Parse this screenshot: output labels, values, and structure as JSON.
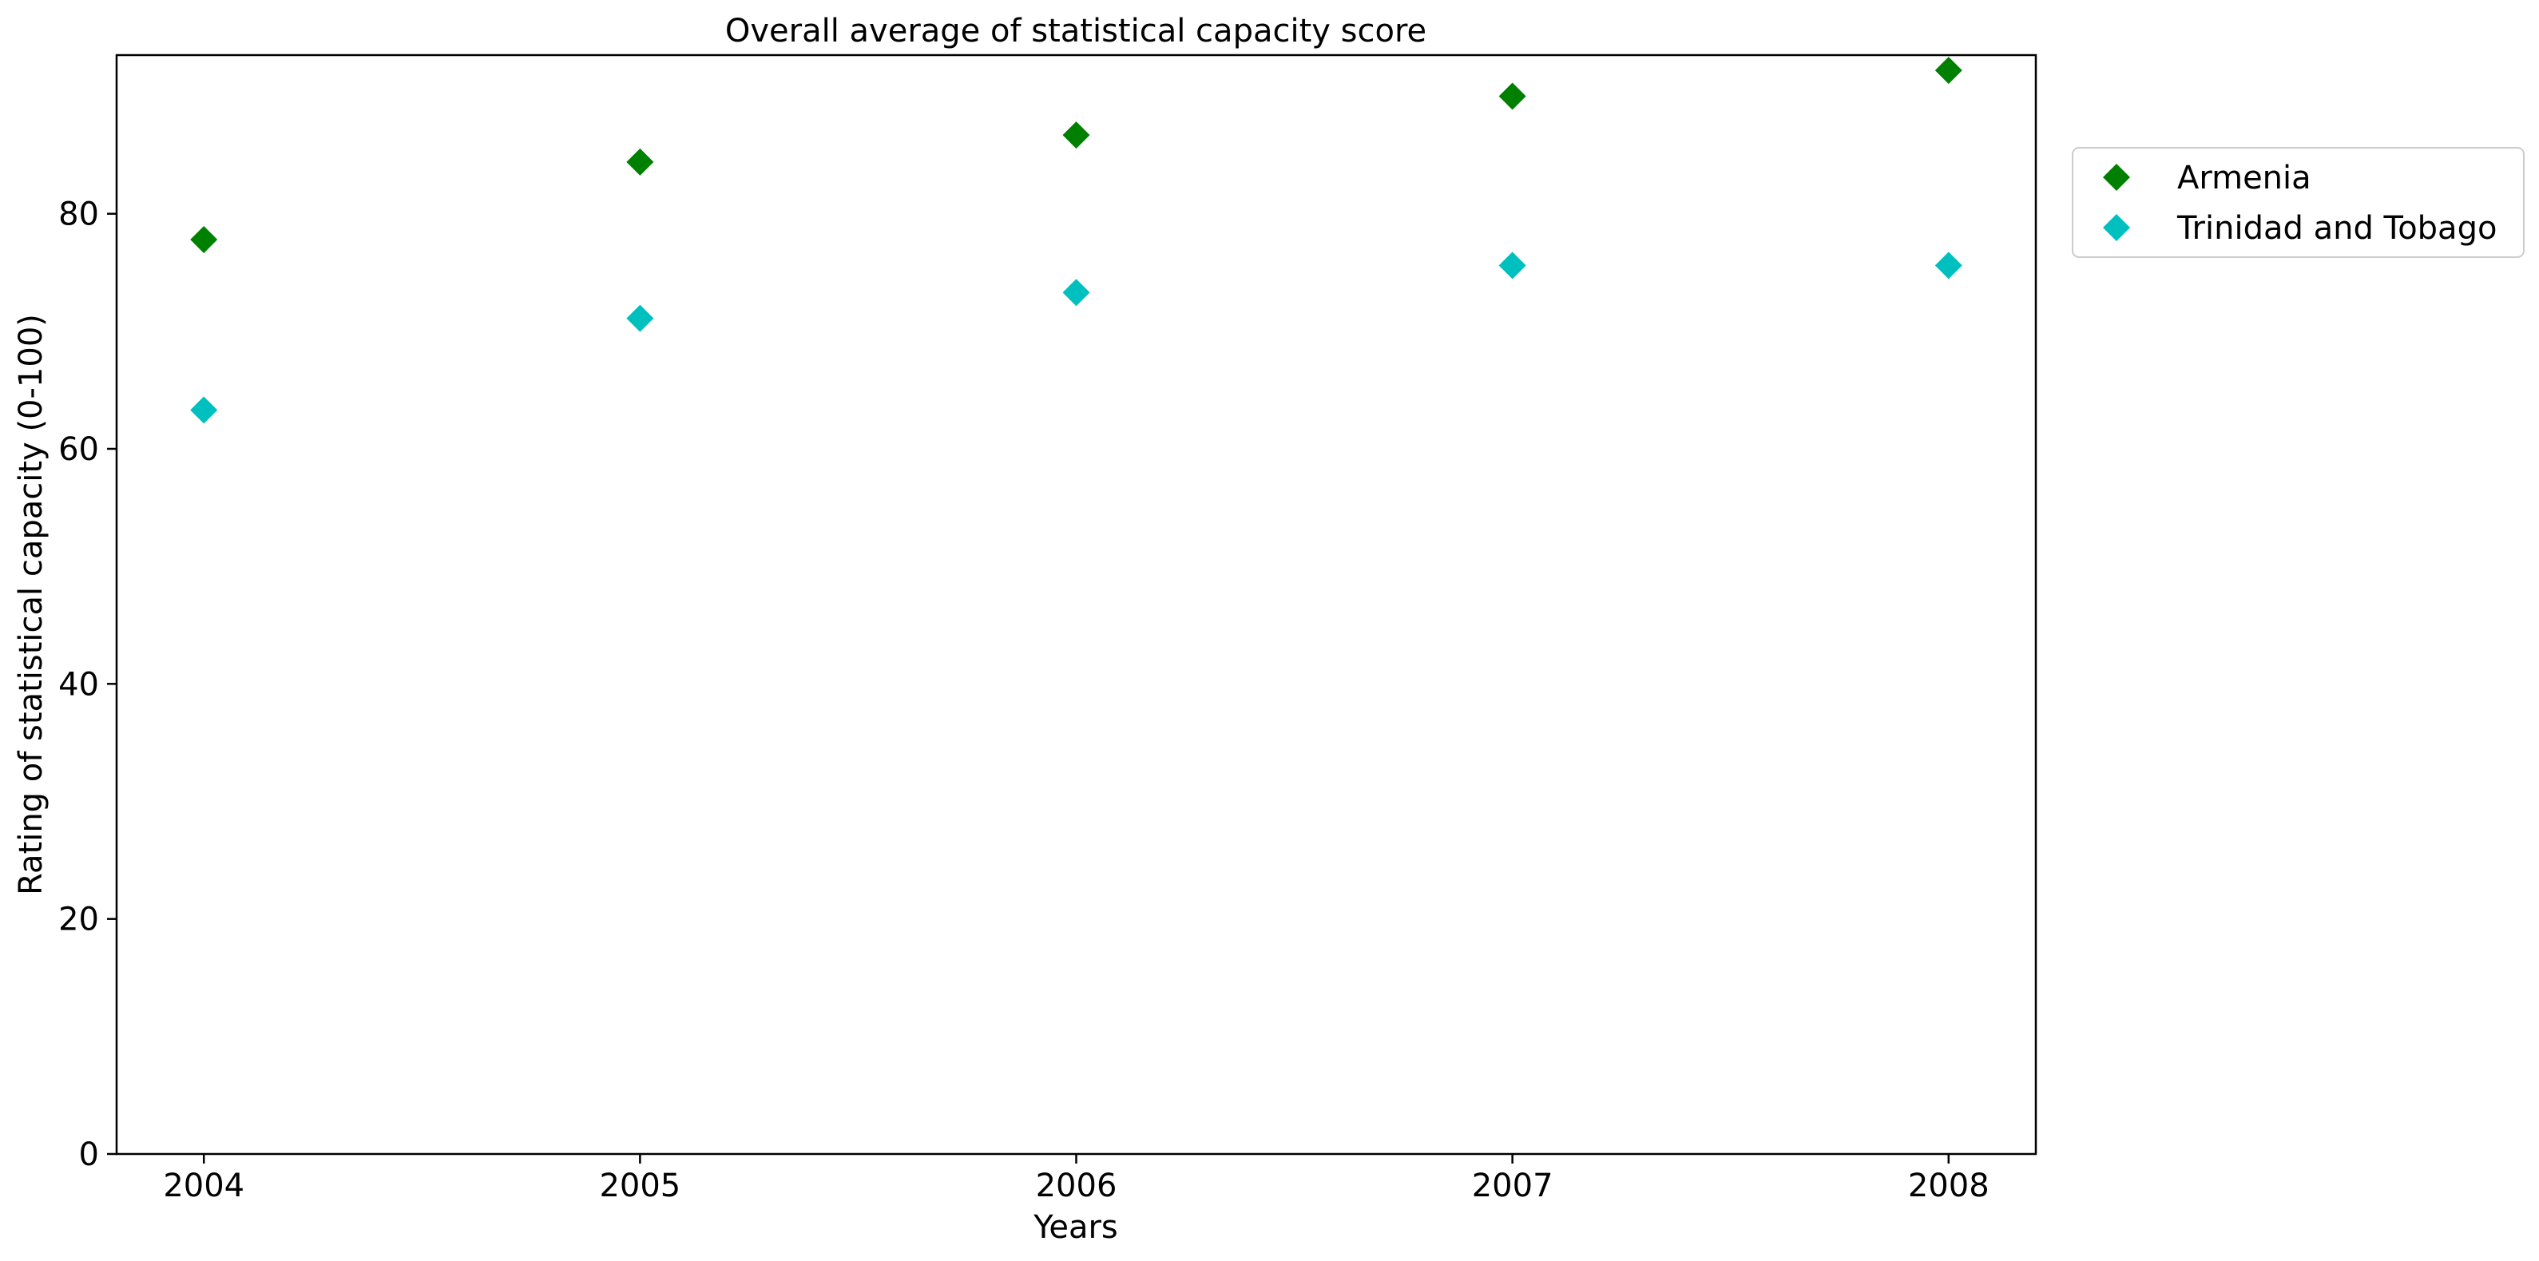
{
  "chart_data": {
    "type": "scatter",
    "title": "Overall average of statistical capacity score",
    "xlabel": "Years",
    "ylabel": "Rating of statistical capacity (0-100)",
    "x": [
      "2004",
      "2005",
      "2006",
      "2007",
      "2008"
    ],
    "xlim": [
      2003.8,
      2008.2
    ],
    "ylim": [
      0,
      93.5
    ],
    "yticks": [
      0,
      20,
      40,
      60,
      80
    ],
    "grid": false,
    "legend_position": "outside-right-top",
    "marker": "diamond",
    "series": [
      {
        "name": "Armenia",
        "color": "#008000",
        "values": [
          77.8,
          84.4,
          86.7,
          90.0,
          92.2
        ]
      },
      {
        "name": "Trinidad and Tobago",
        "color": "#00bfbf",
        "values": [
          63.3,
          71.1,
          73.3,
          75.6,
          75.6
        ]
      }
    ]
  }
}
